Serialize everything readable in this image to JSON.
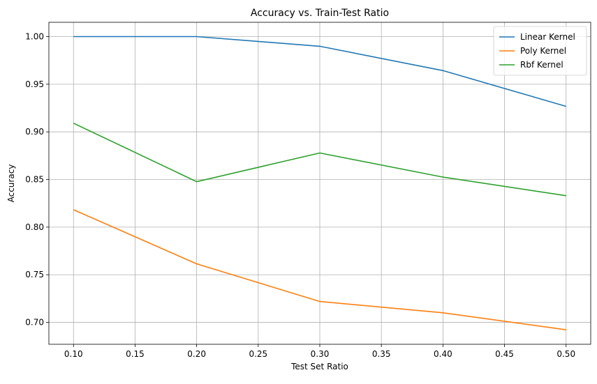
{
  "chart_data": {
    "type": "line",
    "title": "Accuracy vs. Train-Test Ratio",
    "xlabel": "Test Set Ratio",
    "ylabel": "Accuracy",
    "x": [
      0.1,
      0.2,
      0.3,
      0.4,
      0.5
    ],
    "xlim": [
      0.08,
      0.52
    ],
    "ylim": [
      0.677,
      1.015
    ],
    "xticks": [
      0.1,
      0.15,
      0.2,
      0.25,
      0.3,
      0.35,
      0.4,
      0.45,
      0.5
    ],
    "xtick_labels": [
      "0.10",
      "0.15",
      "0.20",
      "0.25",
      "0.30",
      "0.35",
      "0.40",
      "0.45",
      "0.50"
    ],
    "yticks": [
      0.7,
      0.75,
      0.8,
      0.85,
      0.9,
      0.95,
      1.0
    ],
    "ytick_labels": [
      "0.70",
      "0.75",
      "0.80",
      "0.85",
      "0.90",
      "0.95",
      "1.00"
    ],
    "grid": true,
    "legend": "top-right",
    "series": [
      {
        "name": "Linear Kernel",
        "color": "#1f77b4",
        "values": [
          1.0,
          1.0,
          0.9898,
          0.9643,
          0.9268
        ]
      },
      {
        "name": "Poly Kernel",
        "color": "#ff7f0e",
        "values": [
          0.8182,
          0.7614,
          0.7219,
          0.7101,
          0.6922
        ]
      },
      {
        "name": "Rbf Kernel",
        "color": "#2ca02c",
        "values": [
          0.9091,
          0.8477,
          0.8778,
          0.8525,
          0.833
        ]
      }
    ]
  }
}
